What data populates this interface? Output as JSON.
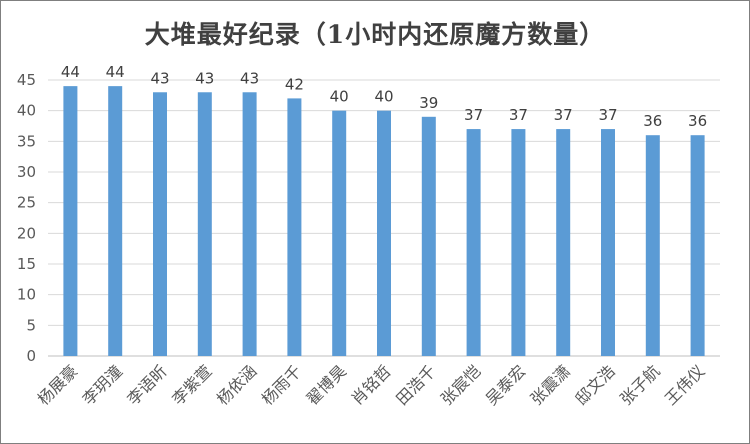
{
  "chart_data": {
    "type": "bar",
    "title": "大堆最好纪录（1小时内还原魔方数量）",
    "xlabel": "",
    "ylabel": "",
    "categories": [
      "杨展豪",
      "李玥潼",
      "李语昕",
      "李紫萱",
      "杨依涵",
      "杨雨千",
      "翟博昊",
      "肖铭哲",
      "田浩千",
      "张宸恺",
      "吴泰宏",
      "张震潇",
      "邸文浩",
      "张子航",
      "王伟仪"
    ],
    "values": [
      44,
      44,
      43,
      43,
      43,
      42,
      40,
      40,
      39,
      37,
      37,
      37,
      37,
      36,
      36
    ],
    "ylim": [
      0,
      45
    ],
    "yticks": [
      0,
      5,
      10,
      15,
      20,
      25,
      30,
      35,
      40,
      45
    ],
    "grid": true,
    "legend": "none",
    "bar_color": "#5b9bd5",
    "grid_color": "#d9d9d9",
    "axis_color": "#bfbfbf"
  }
}
